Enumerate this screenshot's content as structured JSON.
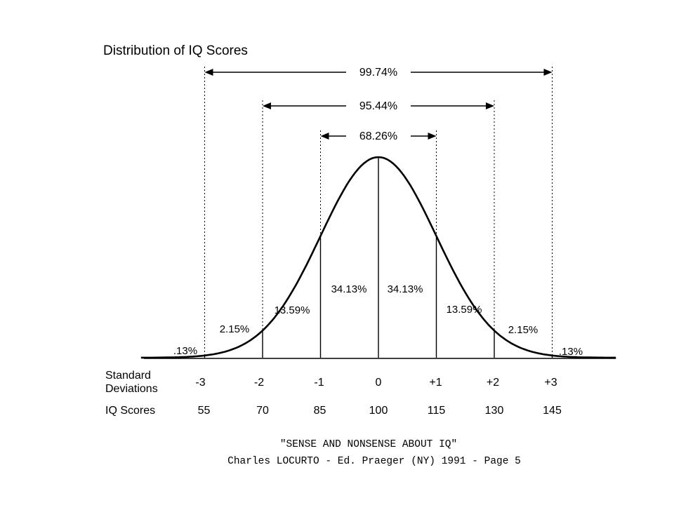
{
  "chart_data": {
    "type": "line",
    "title": "Distribution of IQ Scores",
    "curve": "normal distribution",
    "sd_values": [
      -3,
      -2,
      -1,
      0,
      1,
      2,
      3
    ],
    "sd_labels": [
      "-3",
      "-2",
      "-1",
      "0",
      "+1",
      "+2",
      "+3"
    ],
    "iq_scores": [
      "55",
      "70",
      "85",
      "100",
      "115",
      "130",
      "145"
    ],
    "row_labels": {
      "sd_line1": "Standard",
      "sd_line2": "Deviations",
      "iq": "IQ Scores"
    },
    "regions": [
      {
        "from": -3.6,
        "to": -3,
        "label": ".13%"
      },
      {
        "from": -3,
        "to": -2,
        "label": "2.15%"
      },
      {
        "from": -2,
        "to": -1,
        "label": "13.59%"
      },
      {
        "from": -1,
        "to": 0,
        "label": "34.13%"
      },
      {
        "from": 0,
        "to": 1,
        "label": "34.13%"
      },
      {
        "from": 1,
        "to": 2,
        "label": "13.59%"
      },
      {
        "from": 2,
        "to": 3,
        "label": "2.15%"
      },
      {
        "from": 3,
        "to": 3.6,
        "label": ".13%"
      }
    ],
    "spans": [
      {
        "from": -3,
        "to": 3,
        "label": "99.74%"
      },
      {
        "from": -2,
        "to": 2,
        "label": "95.44%"
      },
      {
        "from": -1,
        "to": 1,
        "label": "68.26%"
      }
    ]
  },
  "citation": {
    "line1": "\"SENSE AND NONSENSE ABOUT IQ\"",
    "line2": "Charles LOCURTO - Ed. Praeger (NY) 1991 - Page 5"
  }
}
